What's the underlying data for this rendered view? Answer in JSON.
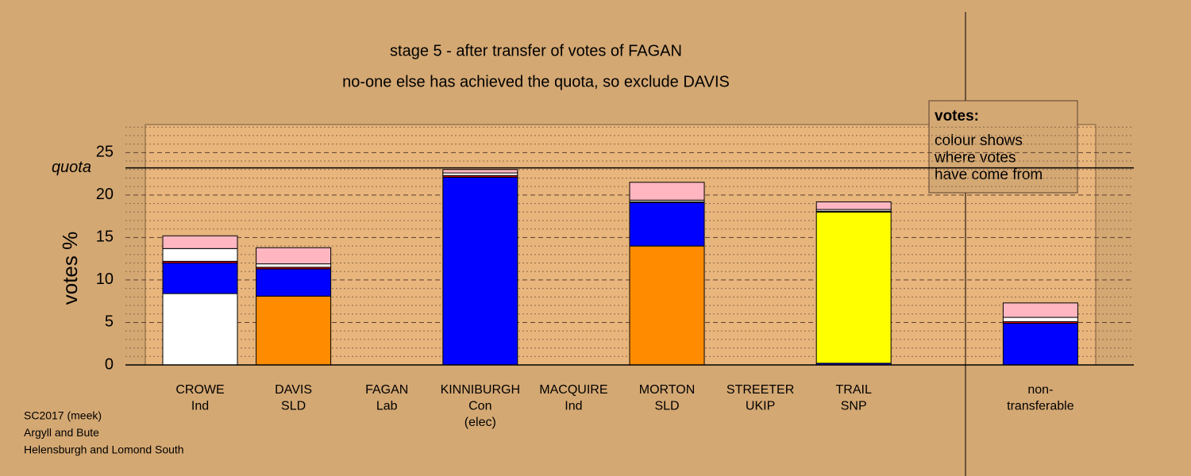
{
  "chart_data": {
    "type": "bar",
    "stacked": true,
    "title": "stage 5 - after transfer of votes of FAGAN",
    "subtitle": "no-one else has achieved the quota, so exclude DAVIS",
    "y_label": "votes %",
    "quota_label": "quota",
    "quota": 23.2,
    "categories": [
      [
        "CROWE",
        "Ind"
      ],
      [
        "DAVIS",
        "SLD"
      ],
      [
        "FAGAN",
        "Lab"
      ],
      [
        "KINNIBURGH",
        "Con",
        "(elec)"
      ],
      [
        "MACQUIRE",
        "Ind"
      ],
      [
        "MORTON",
        "SLD"
      ],
      [
        "STREETER",
        "UKIP"
      ],
      [
        "TRAIL",
        "SNP"
      ],
      [
        "non-",
        "transferable"
      ]
    ],
    "series": [
      {
        "color": "#ffffff",
        "values": [
          8.4,
          0,
          0,
          0,
          0,
          0,
          0,
          0,
          0
        ]
      },
      {
        "color": "#ff8c00",
        "values": [
          0,
          8.1,
          0,
          0,
          0,
          14.0,
          0,
          0,
          0
        ]
      },
      {
        "color": "#0000ff",
        "values": [
          3.6,
          3.2,
          0,
          22.1,
          0,
          5.1,
          0,
          0.2,
          4.9
        ]
      },
      {
        "color": "#ffff00",
        "values": [
          0,
          0,
          0,
          0,
          0,
          0,
          0,
          17.8,
          0
        ]
      },
      {
        "color": "#e00000",
        "values": [
          0.2,
          0.2,
          0,
          0.2,
          0,
          0.1,
          0,
          0.1,
          0.2
        ]
      },
      {
        "color": "#ffffff",
        "values": [
          1.5,
          0.4,
          0,
          0.3,
          0,
          0.2,
          0,
          0.2,
          0.5
        ]
      },
      {
        "color": "#ffb6c1",
        "values": [
          1.5,
          1.9,
          0,
          0.4,
          0,
          2.1,
          0,
          0.9,
          1.7
        ]
      }
    ],
    "ylim": [
      0,
      28.3
    ],
    "yticks": [
      0,
      5,
      10,
      15,
      20,
      25
    ],
    "yminor": [
      1,
      2,
      3,
      4,
      6,
      7,
      8,
      9,
      11,
      12,
      13,
      14,
      16,
      17,
      18,
      19,
      21,
      22,
      23,
      24,
      26,
      27,
      28
    ],
    "grid": true,
    "legend_box": {
      "title": "votes:",
      "lines": [
        "colour shows",
        "where votes",
        "have come from"
      ]
    },
    "footer": [
      "SC2017 (meek)",
      "Argyll and Bute",
      "Helensburgh and Lomond South"
    ]
  }
}
